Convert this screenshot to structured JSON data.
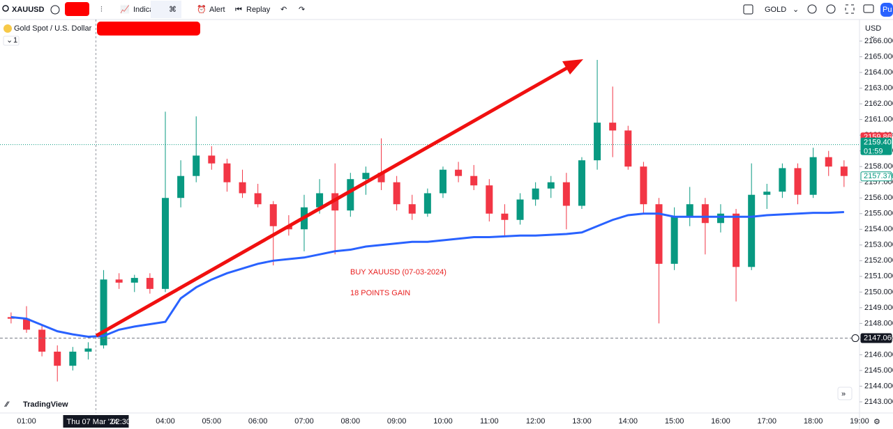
{
  "toolbar": {
    "symbol": "XAUUSD",
    "indicators": "Indica",
    "alert": "Alert",
    "replay": "Replay",
    "symbol_right": "GOLD",
    "user": "Pu"
  },
  "brand": "TradingView",
  "chart_data": {
    "type": "candlestick",
    "title": "Gold Spot / U.S. Dollar",
    "interval_badge": "1",
    "currency": "USD",
    "countdown": "01:59",
    "annotation": [
      "BUY XAUUSD (07-03-2024)",
      "18 POINTS GAIN"
    ],
    "crosshair": {
      "date": "Thu 07 Mar '24",
      "time": "02:30"
    },
    "up_color": "#089981",
    "down_color": "#f23645",
    "x": [
      "00:40",
      "01:00",
      "01:20",
      "01:40",
      "02:00",
      "02:20",
      "02:40",
      "03:00",
      "03:20",
      "03:40",
      "04:00",
      "04:20",
      "04:40",
      "05:00",
      "05:20",
      "05:40",
      "06:00",
      "06:20",
      "06:40",
      "07:00",
      "07:20",
      "07:40",
      "08:00",
      "08:20",
      "08:40",
      "09:00",
      "09:20",
      "09:40",
      "10:00",
      "10:20",
      "10:40",
      "11:00",
      "11:20",
      "11:40",
      "12:00",
      "12:20",
      "12:40",
      "13:00",
      "13:20",
      "13:40",
      "14:00",
      "14:20",
      "14:40",
      "15:00",
      "15:20",
      "15:40",
      "16:00",
      "16:20",
      "16:40",
      "17:00",
      "17:20",
      "17:40",
      "18:00",
      "18:20",
      "18:40"
    ],
    "open": [
      2148.4,
      2148.3,
      2147.6,
      2146.2,
      2145.3,
      2146.2,
      2146.6,
      2150.8,
      2150.6,
      2150.9,
      2150.2,
      2156.0,
      2157.4,
      2158.7,
      2158.2,
      2157.0,
      2156.3,
      2155.6,
      2154.2,
      2154.0,
      2155.4,
      2156.3,
      2155.2,
      2157.2,
      2157.6,
      2157.0,
      2155.6,
      2155.0,
      2156.3,
      2157.8,
      2157.4,
      2156.8,
      2155.0,
      2154.6,
      2155.9,
      2156.6,
      2157.0,
      2155.5,
      2158.4,
      2160.8,
      2160.3,
      2158.0,
      2155.6,
      2151.8,
      2154.8,
      2155.6,
      2154.4,
      2155.0,
      2151.6,
      2156.2,
      2156.4,
      2157.9,
      2156.2,
      2158.6,
      2158.0
    ],
    "high": [
      2148.7,
      2149.1,
      2147.9,
      2146.6,
      2146.5,
      2146.8,
      2151.4,
      2151.2,
      2151.1,
      2151.2,
      2161.5,
      2158.4,
      2161.2,
      2159.3,
      2158.5,
      2157.8,
      2156.9,
      2155.8,
      2154.9,
      2156.2,
      2157.2,
      2158.2,
      2157.6,
      2158.0,
      2159.8,
      2157.4,
      2156.2,
      2156.6,
      2158.0,
      2158.3,
      2158.1,
      2157.2,
      2155.6,
      2156.3,
      2157.0,
      2157.4,
      2157.6,
      2158.6,
      2164.8,
      2163.1,
      2160.6,
      2158.3,
      2156.0,
      2155.4,
      2156.7,
      2156.0,
      2155.6,
      2155.3,
      2158.2,
      2156.9,
      2158.2,
      2158.2,
      2159.2,
      2159.0,
      2158.4
    ],
    "low": [
      2148.0,
      2147.4,
      2145.9,
      2144.3,
      2145.0,
      2145.7,
      2146.4,
      2150.2,
      2150.0,
      2149.9,
      2150.0,
      2155.4,
      2157.0,
      2157.8,
      2156.4,
      2156.0,
      2155.4,
      2151.7,
      2153.6,
      2152.6,
      2155.0,
      2152.4,
      2154.8,
      2156.2,
      2156.5,
      2155.2,
      2154.6,
      2154.8,
      2156.0,
      2157.0,
      2156.5,
      2154.5,
      2153.5,
      2154.3,
      2155.5,
      2156.0,
      2154.0,
      2155.3,
      2157.8,
      2158.6,
      2157.8,
      2155.0,
      2148.0,
      2151.4,
      2154.2,
      2152.4,
      2153.8,
      2149.4,
      2151.4,
      2155.3,
      2156.0,
      2155.6,
      2156.0,
      2157.4,
      2156.7
    ],
    "close": [
      2148.3,
      2147.6,
      2146.2,
      2145.3,
      2146.2,
      2146.4,
      2150.8,
      2150.6,
      2150.9,
      2150.2,
      2156.0,
      2157.4,
      2158.7,
      2158.2,
      2157.0,
      2156.3,
      2155.6,
      2154.2,
      2154.0,
      2155.4,
      2156.3,
      2155.2,
      2157.2,
      2157.6,
      2157.0,
      2155.6,
      2155.0,
      2156.3,
      2157.8,
      2157.4,
      2156.8,
      2155.0,
      2154.6,
      2155.9,
      2156.6,
      2157.0,
      2155.5,
      2158.4,
      2160.8,
      2160.3,
      2158.0,
      2155.6,
      2151.8,
      2154.8,
      2155.6,
      2154.4,
      2155.0,
      2151.6,
      2156.2,
      2156.4,
      2157.9,
      2156.2,
      2158.6,
      2158.0,
      2157.4
    ],
    "ma": {
      "color": "#2962ff",
      "values": [
        2148.4,
        2148.3,
        2147.9,
        2147.5,
        2147.3,
        2147.15,
        2147.2,
        2147.6,
        2147.8,
        2147.95,
        2148.1,
        2149.6,
        2150.3,
        2150.8,
        2151.2,
        2151.5,
        2151.8,
        2152.0,
        2152.1,
        2152.2,
        2152.4,
        2152.6,
        2152.7,
        2152.9,
        2153.0,
        2153.1,
        2153.2,
        2153.2,
        2153.3,
        2153.4,
        2153.5,
        2153.5,
        2153.55,
        2153.6,
        2153.6,
        2153.65,
        2153.7,
        2153.8,
        2154.2,
        2154.6,
        2154.9,
        2155.0,
        2155.0,
        2154.8,
        2154.8,
        2154.8,
        2154.8,
        2154.8,
        2154.8,
        2154.9,
        2154.95,
        2155.0,
        2155.05,
        2155.05,
        2155.1
      ]
    },
    "ylim": [
      2143,
      2166
    ],
    "yticks": [
      {
        "value": 2143,
        "label": "2143.000"
      },
      {
        "value": 2144,
        "label": "2144.000"
      },
      {
        "value": 2145,
        "label": "2145.000"
      },
      {
        "value": 2146,
        "label": "2146.000"
      },
      {
        "value": 2147,
        "label": "2147.000"
      },
      {
        "value": 2148,
        "label": "2148.000"
      },
      {
        "value": 2149,
        "label": "2149.000"
      },
      {
        "value": 2150,
        "label": "2150.000"
      },
      {
        "value": 2151,
        "label": "2151.000"
      },
      {
        "value": 2152,
        "label": "2152.000"
      },
      {
        "value": 2153,
        "label": "2153.000"
      },
      {
        "value": 2154,
        "label": "2154.000"
      },
      {
        "value": 2155,
        "label": "2155.000"
      },
      {
        "value": 2156,
        "label": "2156.000"
      },
      {
        "value": 2157,
        "label": "2157.000"
      },
      {
        "value": 2158,
        "label": "2158.000"
      },
      {
        "value": 2159,
        "label": "2159.000"
      },
      {
        "value": 2160,
        "label": "2160.000"
      },
      {
        "value": 2161,
        "label": "2161.000"
      },
      {
        "value": 2162,
        "label": "2162.000"
      },
      {
        "value": 2163,
        "label": "2163.000"
      },
      {
        "value": 2164,
        "label": "2164.000"
      },
      {
        "value": 2165,
        "label": "2165.000"
      },
      {
        "value": 2166,
        "label": "2166.000"
      }
    ],
    "xticks": [
      "01:00",
      "04:00",
      "05:00",
      "06:00",
      "07:00",
      "08:00",
      "09:00",
      "10:00",
      "11:00",
      "12:00",
      "13:00",
      "14:00",
      "15:00",
      "16:00",
      "17:00",
      "18:00",
      "19:00"
    ],
    "price_labels": [
      {
        "value": 2159.86,
        "label": "2159.860",
        "color": "#f23645"
      },
      {
        "value": 2159.403,
        "label": "2159.403",
        "color": "#089981"
      },
      {
        "value": 2157.376,
        "label": "2157.376",
        "color": "#089981"
      },
      {
        "value": 2147.06,
        "label": "2147.060",
        "color": "#131722"
      }
    ]
  }
}
